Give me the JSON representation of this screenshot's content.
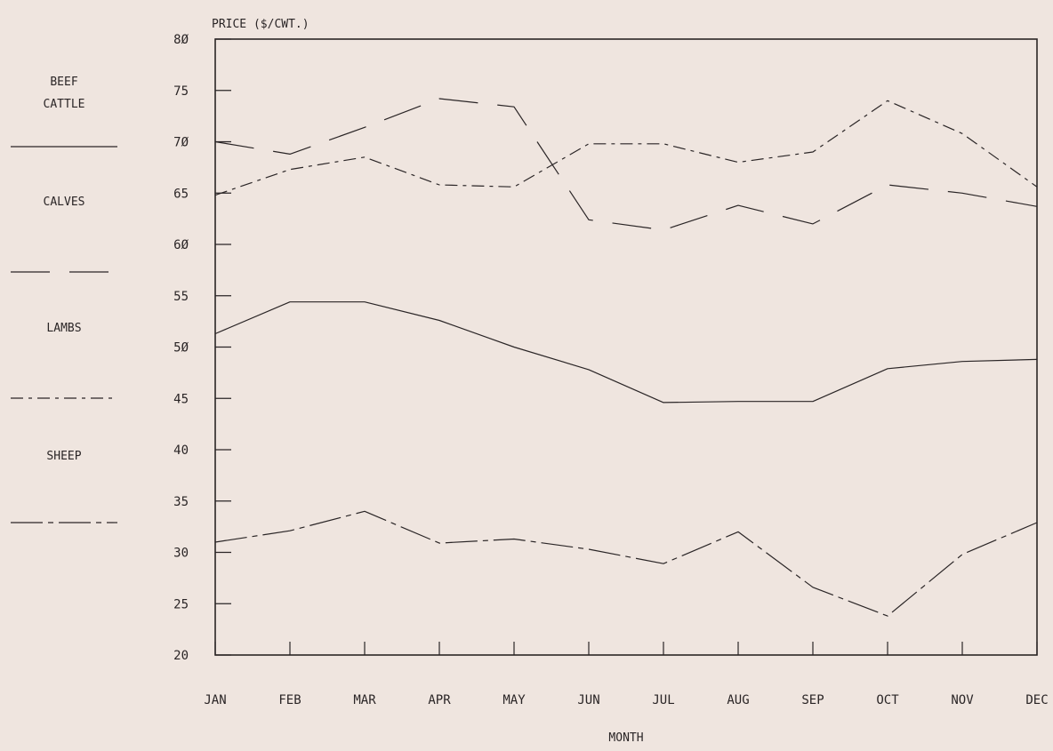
{
  "chart_data": {
    "type": "line",
    "title": "",
    "ylabel": "PRICE ($/CWT.)",
    "xlabel": "MONTH",
    "categories": [
      "JAN",
      "FEB",
      "MAR",
      "APR",
      "MAY",
      "JUN",
      "JUL",
      "AUG",
      "SEP",
      "OCT",
      "NOV",
      "DEC"
    ],
    "y_tick_labels": [
      "20",
      "25",
      "30",
      "35",
      "40",
      "45",
      "5Ø",
      "55",
      "6Ø",
      "65",
      "7Ø",
      "75",
      "8Ø"
    ],
    "ylim": [
      20,
      80
    ],
    "grid": false,
    "legend_position": "left",
    "series": [
      {
        "name": "BEEF CATTLE",
        "legend_label_lines": [
          "BEEF",
          "CATTLE"
        ],
        "line_style": "solid",
        "values": [
          51.3,
          54.4,
          54.4,
          52.6,
          50.0,
          47.8,
          44.6,
          44.7,
          44.7,
          47.9,
          48.6,
          48.8
        ]
      },
      {
        "name": "CALVES",
        "legend_label_lines": [
          "CALVES"
        ],
        "line_style": "long-dash",
        "values": [
          70.0,
          68.8,
          71.4,
          74.2,
          73.4,
          62.4,
          61.4,
          63.8,
          62.0,
          65.8,
          65.0,
          63.7
        ]
      },
      {
        "name": "LAMBS",
        "legend_label_lines": [
          "LAMBS"
        ],
        "line_style": "dash-dot",
        "values": [
          64.8,
          67.3,
          68.5,
          65.8,
          65.6,
          69.8,
          69.8,
          68.0,
          69.0,
          74.0,
          70.8,
          65.6
        ]
      },
      {
        "name": "SHEEP",
        "legend_label_lines": [
          "SHEEP"
        ],
        "line_style": "long-dash-dot",
        "values": [
          31.0,
          32.1,
          34.0,
          30.9,
          31.3,
          30.3,
          28.9,
          32.0,
          26.6,
          23.8,
          29.8,
          32.9
        ]
      }
    ]
  }
}
